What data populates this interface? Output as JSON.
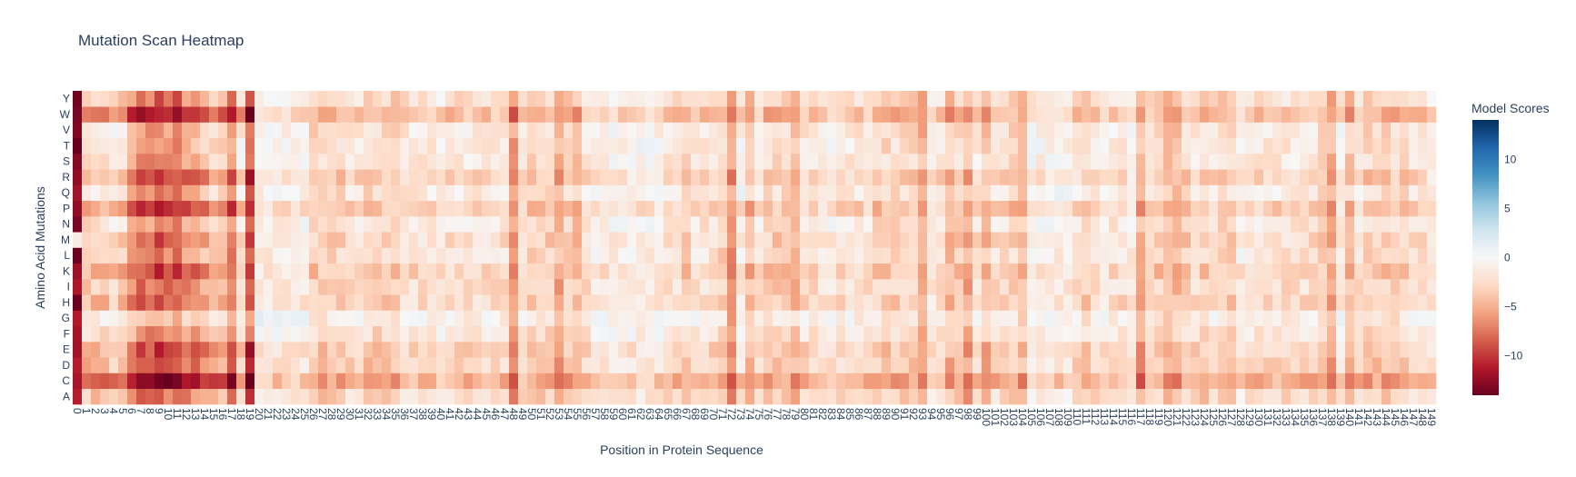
{
  "chart_data": {
    "type": "heatmap",
    "title": "Mutation Scan Heatmap",
    "xlabel": "Position in Protein Sequence",
    "ylabel": "Amino Acid Mutations",
    "x_range": [
      0,
      149
    ],
    "y_categories": [
      "A",
      "C",
      "D",
      "E",
      "F",
      "G",
      "H",
      "I",
      "K",
      "L",
      "M",
      "N",
      "P",
      "Q",
      "R",
      "S",
      "T",
      "V",
      "W",
      "Y"
    ],
    "colorbar": {
      "title": "Model Scores",
      "zmin": -14,
      "zmax": 14,
      "tickvals": [
        -10,
        -5,
        0,
        5,
        10
      ],
      "ticktext": [
        "−10",
        "−5",
        "0",
        "5",
        "10"
      ],
      "colorscale": [
        "#67001f",
        "#b2182b",
        "#d6604d",
        "#f4a582",
        "#fddbc7",
        "#f7f7f7",
        "#d1e5f0",
        "#92c5de",
        "#4393c3",
        "#2166ac",
        "#053061"
      ]
    },
    "values": {
      "column_base": [
        -12,
        -3,
        -3,
        -3,
        -2,
        -3,
        -6,
        -7,
        -7,
        -8,
        -7,
        -8,
        -6,
        -6,
        -5,
        -4,
        -4,
        -7,
        -2,
        -9,
        -1,
        -1,
        -1,
        -1,
        -1,
        -1,
        -3,
        -3,
        -3,
        -3,
        -2,
        -2,
        -3,
        -3,
        -3,
        -3,
        -2,
        -2,
        -2,
        -2,
        -1,
        -2,
        -2,
        -2,
        -2,
        -2,
        -2,
        -2,
        -6,
        -2,
        -3,
        -3,
        -3,
        -5,
        -3,
        -4,
        -2,
        -1,
        -1,
        -1,
        -1,
        -1,
        -1,
        -1,
        -1,
        -2,
        -2,
        -3,
        -2,
        -2,
        -2,
        -3,
        -6,
        -1,
        -4,
        -2,
        -3,
        -3,
        -3,
        -4,
        -2,
        -2,
        -1,
        -1,
        -2,
        -2,
        -2,
        -2,
        -3,
        -3,
        -3,
        -3,
        -3,
        -5,
        -1,
        -2,
        -4,
        -3,
        -5,
        -2,
        -4,
        -2,
        -2,
        -3,
        -4,
        -1,
        -1,
        -1,
        -1,
        -1,
        -2,
        -3,
        -2,
        -1,
        -2,
        -2,
        -1,
        -5,
        -2,
        -3,
        -4,
        -4,
        -3,
        -2,
        -3,
        -2,
        -3,
        -3,
        -1,
        -2,
        -2,
        -2,
        -2,
        -2,
        -2,
        -2,
        -2,
        -3,
        -5,
        -1,
        -4,
        -2,
        -3,
        -3,
        -3,
        -3,
        -3,
        -2,
        -2,
        -1
      ],
      "row_offset": [
        -0.5,
        -3.5,
        -1,
        -1.2,
        0.5,
        1.5,
        -0.8,
        -0.3,
        -1.2,
        0.2,
        -0.5,
        0.5,
        -1.5,
        0.8,
        -1,
        0.6,
        0.8,
        0.6,
        -2.5,
        -0.2
      ]
    }
  }
}
